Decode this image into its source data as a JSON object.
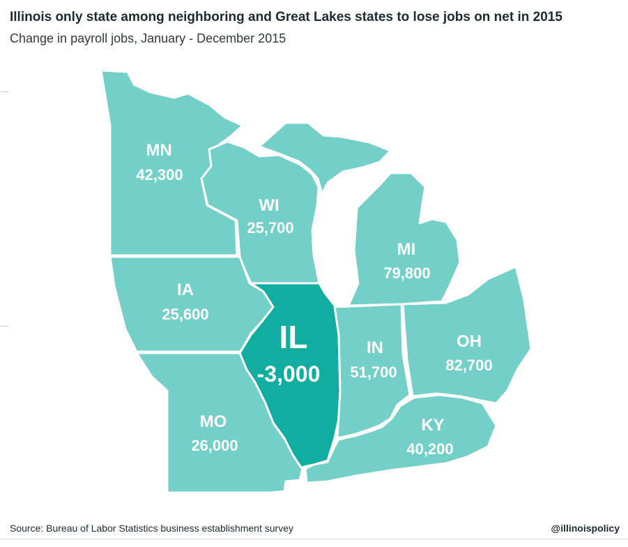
{
  "title": "Illinois only state among neighboring and Great Lakes states to lose jobs on net in 2015",
  "subtitle": "Change in payroll jobs, January - December 2015",
  "colors": {
    "state_fill": "#72d0c8",
    "highlight_fill": "#11ada0",
    "border": "#ffffff",
    "text": "#1c2a33"
  },
  "states": [
    {
      "abbr": "MN",
      "value": "42,300",
      "jobs_change": 42300
    },
    {
      "abbr": "WI",
      "value": "25,700",
      "jobs_change": 25700
    },
    {
      "abbr": "MI",
      "value": "79,800",
      "jobs_change": 79800
    },
    {
      "abbr": "IA",
      "value": "25,600",
      "jobs_change": 25600
    },
    {
      "abbr": "IL",
      "value": "-3,000",
      "jobs_change": -3000,
      "highlighted": true
    },
    {
      "abbr": "IN",
      "value": "51,700",
      "jobs_change": 51700
    },
    {
      "abbr": "OH",
      "value": "82,700",
      "jobs_change": 82700
    },
    {
      "abbr": "MO",
      "value": "26,000",
      "jobs_change": 26000
    },
    {
      "abbr": "KY",
      "value": "40,200",
      "jobs_change": 40200
    }
  ],
  "source": "Source: Bureau of Labor Statistics business establishment survey",
  "handle": "@illinoispolicy"
}
